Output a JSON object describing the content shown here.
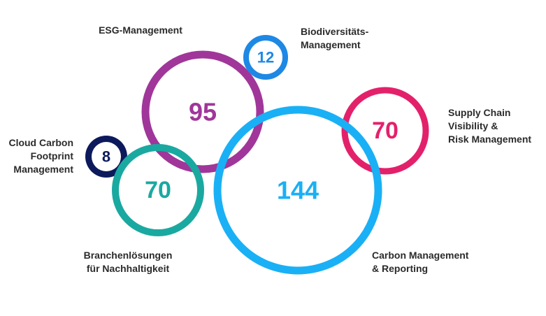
{
  "chart_data": {
    "type": "bubble",
    "title": "",
    "series": [
      {
        "label_lines": [
          "ESG-Management"
        ],
        "value": 95,
        "color": "#a0369a"
      },
      {
        "label_lines": [
          "Biodiversitäts-",
          "Management"
        ],
        "value": 12,
        "color": "#1e88e5"
      },
      {
        "label_lines": [
          "Supply Chain",
          "Visibility &",
          "Risk Management"
        ],
        "value": 70,
        "color": "#e3216b"
      },
      {
        "label_lines": [
          "Cloud Carbon",
          "Footprint",
          "Management"
        ],
        "value": 8,
        "color": "#0c1a5c"
      },
      {
        "label_lines": [
          "Branchenlösungen",
          "für Nachhaltigkeit"
        ],
        "value": 70,
        "color": "#1aa9a0"
      },
      {
        "label_lines": [
          "Carbon Management",
          "& Reporting"
        ],
        "value": 144,
        "color": "#1ab0f5"
      }
    ]
  }
}
